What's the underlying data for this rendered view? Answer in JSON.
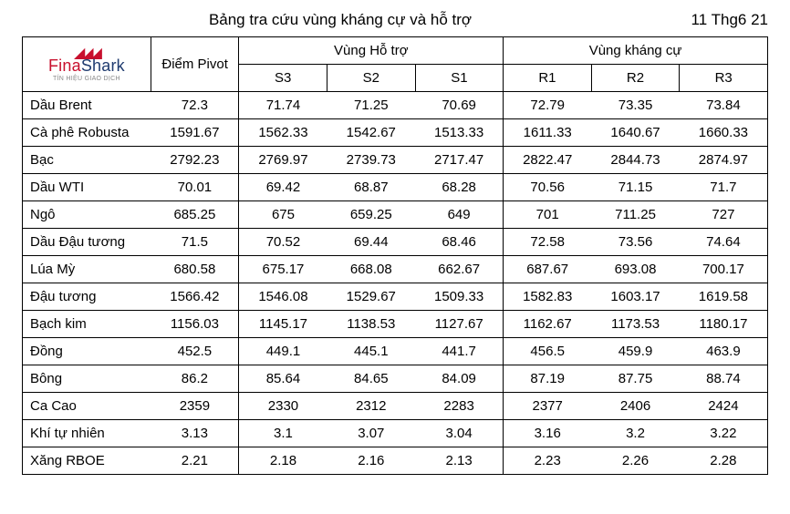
{
  "title": "Bảng tra cứu vùng kháng cự và hỗ trợ",
  "date": "11 Thg6 21",
  "logo": {
    "left": "Fina",
    "right": "Shark",
    "sub": "TÍN HIỆU GIAO DỊCH",
    "color_left": "#c8102e",
    "color_right": "#1f3b6f"
  },
  "header": {
    "pivot": "Điểm Pivot",
    "support_group": "Vùng Hỗ trợ",
    "resist_group": "Vùng kháng cự",
    "s3": "S3",
    "s2": "S2",
    "s1": "S1",
    "r1": "R1",
    "r2": "R2",
    "r3": "R3"
  },
  "table": {
    "columns": [
      "name",
      "pivot",
      "s3",
      "s2",
      "s1",
      "r1",
      "r2",
      "r3"
    ],
    "border_color": "#000000",
    "background_color": "#ffffff",
    "fontsize": 15,
    "rows": [
      {
        "name": "Dầu Brent",
        "pivot": "72.3",
        "s3": "71.74",
        "s2": "71.25",
        "s1": "70.69",
        "r1": "72.79",
        "r2": "73.35",
        "r3": "73.84"
      },
      {
        "name": "Cà phê Robusta",
        "pivot": "1591.67",
        "s3": "1562.33",
        "s2": "1542.67",
        "s1": "1513.33",
        "r1": "1611.33",
        "r2": "1640.67",
        "r3": "1660.33"
      },
      {
        "name": "Bạc",
        "pivot": "2792.23",
        "s3": "2769.97",
        "s2": "2739.73",
        "s1": "2717.47",
        "r1": "2822.47",
        "r2": "2844.73",
        "r3": "2874.97"
      },
      {
        "name": "Dầu WTI",
        "pivot": "70.01",
        "s3": "69.42",
        "s2": "68.87",
        "s1": "68.28",
        "r1": "70.56",
        "r2": "71.15",
        "r3": "71.7"
      },
      {
        "name": "Ngô",
        "pivot": "685.25",
        "s3": "675",
        "s2": "659.25",
        "s1": "649",
        "r1": "701",
        "r2": "711.25",
        "r3": "727"
      },
      {
        "name": "Dầu Đậu tương",
        "pivot": "71.5",
        "s3": "70.52",
        "s2": "69.44",
        "s1": "68.46",
        "r1": "72.58",
        "r2": "73.56",
        "r3": "74.64"
      },
      {
        "name": "Lúa Mỳ",
        "pivot": "680.58",
        "s3": "675.17",
        "s2": "668.08",
        "s1": "662.67",
        "r1": "687.67",
        "r2": "693.08",
        "r3": "700.17"
      },
      {
        "name": "Đậu tương",
        "pivot": "1566.42",
        "s3": "1546.08",
        "s2": "1529.67",
        "s1": "1509.33",
        "r1": "1582.83",
        "r2": "1603.17",
        "r3": "1619.58"
      },
      {
        "name": "Bạch kim",
        "pivot": "1156.03",
        "s3": "1145.17",
        "s2": "1138.53",
        "s1": "1127.67",
        "r1": "1162.67",
        "r2": "1173.53",
        "r3": "1180.17"
      },
      {
        "name": "Đồng",
        "pivot": "452.5",
        "s3": "449.1",
        "s2": "445.1",
        "s1": "441.7",
        "r1": "456.5",
        "r2": "459.9",
        "r3": "463.9"
      },
      {
        "name": "Bông",
        "pivot": "86.2",
        "s3": "85.64",
        "s2": "84.65",
        "s1": "84.09",
        "r1": "87.19",
        "r2": "87.75",
        "r3": "88.74"
      },
      {
        "name": "Ca Cao",
        "pivot": "2359",
        "s3": "2330",
        "s2": "2312",
        "s1": "2283",
        "r1": "2377",
        "r2": "2406",
        "r3": "2424"
      },
      {
        "name": "Khí tự nhiên",
        "pivot": "3.13",
        "s3": "3.1",
        "s2": "3.07",
        "s1": "3.04",
        "r1": "3.16",
        "r2": "3.2",
        "r3": "3.22"
      },
      {
        "name": "Xăng RBOE",
        "pivot": "2.21",
        "s3": "2.18",
        "s2": "2.16",
        "s1": "2.13",
        "r1": "2.23",
        "r2": "2.26",
        "r3": "2.28"
      }
    ]
  }
}
